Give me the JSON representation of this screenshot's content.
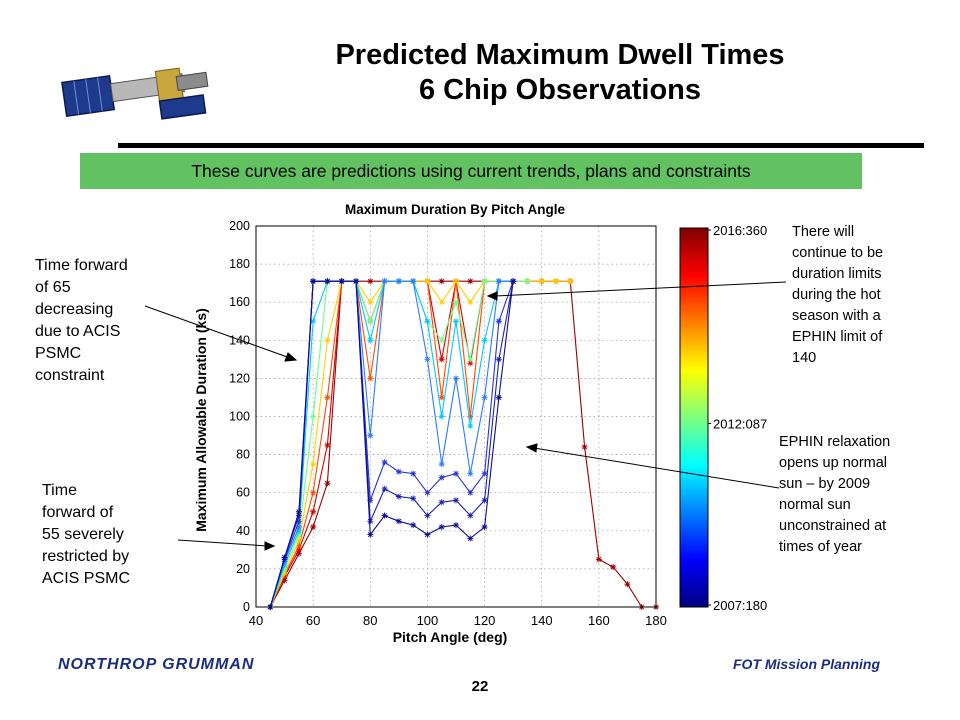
{
  "slide": {
    "title_line1": "Predicted Maximum Dwell Times",
    "title_line2": "6 Chip Observations",
    "banner": "These curves are predictions using current trends, plans and constraints",
    "callout_left_top": [
      "Time forward",
      "of 65",
      "decreasing",
      "due to ACIS",
      "PSMC",
      "constraint"
    ],
    "callout_left_bottom": [
      "Time",
      "forward of",
      "55 severely",
      "restricted by",
      "ACIS PSMC"
    ],
    "callout_right_top": [
      "There will",
      "continue to be",
      "duration limits",
      "during the hot",
      "season with a",
      "EPHIN limit of",
      "140"
    ],
    "callout_right_bottom": [
      "EPHIN relaxation",
      "opens up normal",
      "sun – by 2009",
      "normal sun",
      "unconstrained at",
      "times of year"
    ],
    "footer_right": "FOT Mission Planning",
    "page_number": "22",
    "logo_text": "NORTHROP GRUMMAN",
    "logo_color": "#1a2d80",
    "banner_color": "#62c262"
  },
  "chart_data": {
    "type": "line",
    "title": "Maximum Duration By Pitch Angle",
    "xlabel": "Pitch Angle (deg)",
    "ylabel": "Maximum Allowable Duration (ks)",
    "xlim": [
      40,
      180
    ],
    "ylim": [
      0,
      200
    ],
    "xticks": [
      40,
      60,
      80,
      100,
      120,
      140,
      160,
      180
    ],
    "yticks": [
      0,
      20,
      40,
      60,
      80,
      100,
      120,
      140,
      160,
      180,
      200
    ],
    "colorbar": {
      "labels": [
        "2016:360",
        "2012:087",
        "2007:180"
      ],
      "colormap": "jet"
    },
    "x": [
      45,
      50,
      55,
      60,
      65,
      70,
      75,
      80,
      85,
      90,
      95,
      100,
      105,
      110,
      115,
      120,
      125,
      130,
      135,
      140,
      145,
      150,
      155,
      160,
      165,
      170,
      175,
      180
    ],
    "series": [
      {
        "values": [
          0,
          14,
          28,
          42,
          65,
          171,
          171,
          171,
          171,
          171,
          171,
          171,
          171,
          171,
          171,
          171,
          171,
          171,
          171,
          171,
          171,
          171,
          84,
          25,
          21,
          12,
          0,
          0
        ],
        "color": "#9b0000"
      },
      {
        "values": [
          0,
          16,
          30,
          50,
          85,
          171,
          171,
          150,
          171,
          171,
          171,
          171,
          130,
          171,
          128,
          171,
          171,
          171,
          171,
          171,
          171,
          171,
          null,
          null,
          null,
          null,
          null,
          null
        ],
        "color": "#d40000"
      },
      {
        "values": [
          0,
          17,
          32,
          60,
          110,
          171,
          171,
          120,
          171,
          171,
          171,
          171,
          110,
          171,
          100,
          171,
          171,
          171,
          171,
          171,
          171,
          171,
          null,
          null,
          null,
          null,
          null,
          null
        ],
        "color": "#ff4a00"
      },
      {
        "values": [
          0,
          18,
          35,
          75,
          140,
          171,
          171,
          160,
          171,
          171,
          171,
          171,
          160,
          171,
          160,
          171,
          171,
          171,
          171,
          171,
          171,
          171,
          null,
          null,
          null,
          null,
          null,
          null
        ],
        "color": "#ffd000"
      },
      {
        "values": [
          0,
          20,
          38,
          100,
          171,
          171,
          171,
          150,
          171,
          171,
          171,
          150,
          140,
          160,
          130,
          171,
          171,
          171,
          171,
          null,
          null,
          null,
          null,
          null,
          null,
          null,
          null,
          null
        ],
        "color": "#6fff88"
      },
      {
        "values": [
          0,
          22,
          40,
          150,
          171,
          171,
          171,
          140,
          171,
          171,
          171,
          150,
          100,
          150,
          95,
          140,
          171,
          171,
          null,
          null,
          null,
          null,
          null,
          null,
          null,
          null,
          null,
          null
        ],
        "color": "#00c8ff"
      },
      {
        "values": [
          0,
          24,
          42,
          171,
          171,
          171,
          171,
          90,
          171,
          171,
          171,
          130,
          75,
          120,
          70,
          110,
          171,
          171,
          null,
          null,
          null,
          null,
          null,
          null,
          null,
          null,
          null,
          null
        ],
        "color": "#2a7cff"
      },
      {
        "values": [
          0,
          25,
          45,
          171,
          171,
          171,
          171,
          56,
          76,
          71,
          70,
          60,
          68,
          70,
          60,
          70,
          150,
          171,
          null,
          null,
          null,
          null,
          null,
          null,
          null,
          null,
          null,
          null
        ],
        "color": "#2332d8"
      },
      {
        "values": [
          0,
          26,
          48,
          171,
          171,
          171,
          171,
          45,
          62,
          58,
          57,
          48,
          55,
          56,
          48,
          56,
          130,
          171,
          null,
          null,
          null,
          null,
          null,
          null,
          null,
          null,
          null,
          null
        ],
        "color": "#1a1fb0"
      },
      {
        "values": [
          0,
          26,
          50,
          171,
          171,
          171,
          171,
          38,
          48,
          45,
          43,
          38,
          42,
          43,
          36,
          42,
          110,
          171,
          null,
          null,
          null,
          null,
          null,
          null,
          null,
          null,
          null,
          null
        ],
        "color": "#0d0d90"
      }
    ]
  }
}
